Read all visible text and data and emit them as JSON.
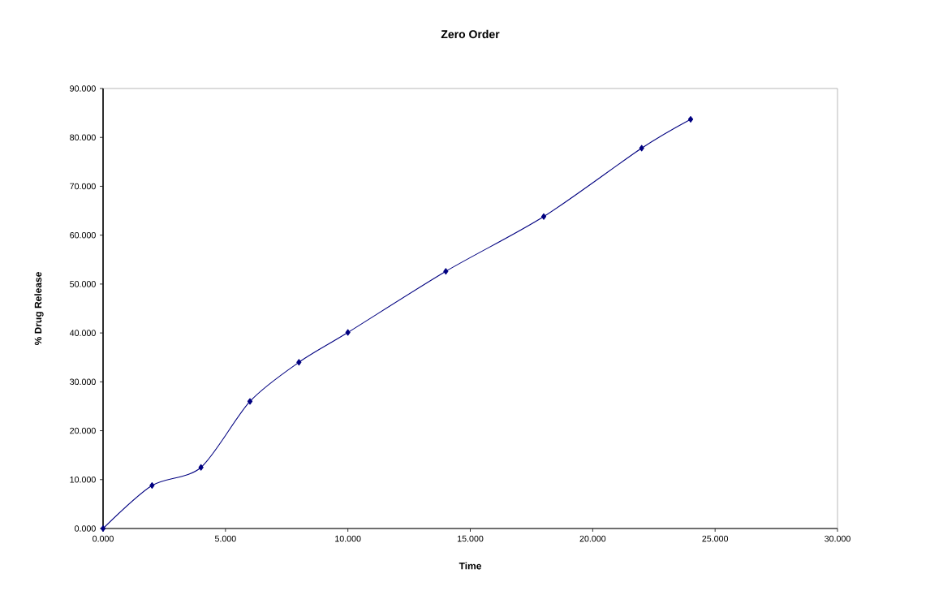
{
  "chart_data": {
    "type": "line",
    "title": "Zero Order",
    "xlabel": "Time",
    "ylabel": "% Drug Release",
    "x": [
      0,
      2,
      4,
      6,
      8,
      10,
      14,
      18,
      22,
      24
    ],
    "series": [
      {
        "color": "#000080",
        "values": [
          0,
          8.8,
          12.5,
          26.0,
          34.0,
          40.1,
          52.6,
          63.8,
          77.8,
          83.7
        ]
      }
    ],
    "xlim": [
      0,
      30
    ],
    "ylim": [
      0,
      90
    ],
    "xticks": [
      {
        "value": 0,
        "label": "0.000"
      },
      {
        "value": 5,
        "label": "5.000"
      },
      {
        "value": 10,
        "label": "10.000"
      },
      {
        "value": 15,
        "label": "15.000"
      },
      {
        "value": 20,
        "label": "20.000"
      },
      {
        "value": 25,
        "label": "25.000"
      },
      {
        "value": 30,
        "label": "30.000"
      }
    ],
    "yticks": [
      {
        "value": 0,
        "label": "0.000"
      },
      {
        "value": 10,
        "label": "10.000"
      },
      {
        "value": 20,
        "label": "20.000"
      },
      {
        "value": 30,
        "label": "30.000"
      },
      {
        "value": 40,
        "label": "40.000"
      },
      {
        "value": 50,
        "label": "50.000"
      },
      {
        "value": 60,
        "label": "60.000"
      },
      {
        "value": 70,
        "label": "70.000"
      },
      {
        "value": 80,
        "label": "80.000"
      },
      {
        "value": 90,
        "label": "90.000"
      }
    ],
    "marker": "diamond",
    "line_style": "solid"
  }
}
